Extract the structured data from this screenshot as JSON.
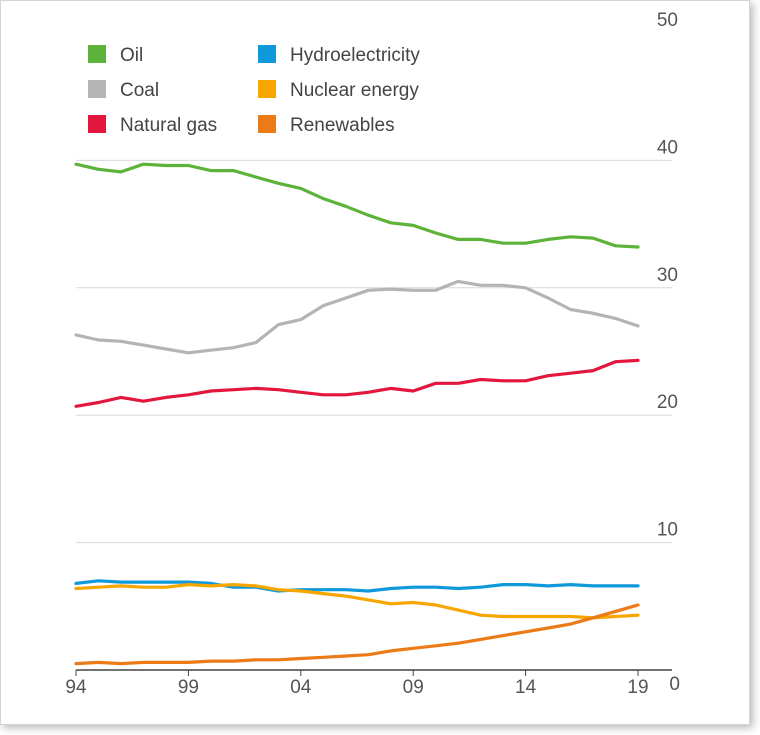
{
  "chart_data": {
    "type": "line",
    "title": "",
    "xlabel": "",
    "ylabel": "",
    "x": [
      1994,
      1995,
      1996,
      1997,
      1998,
      1999,
      2000,
      2001,
      2002,
      2003,
      2004,
      2005,
      2006,
      2007,
      2008,
      2009,
      2010,
      2011,
      2012,
      2013,
      2014,
      2015,
      2016,
      2017,
      2018,
      2019
    ],
    "x_tick_values": [
      1994,
      1999,
      2004,
      2009,
      2014,
      2019
    ],
    "x_tick_labels": [
      "94",
      "99",
      "04",
      "09",
      "14",
      "19"
    ],
    "xlim": [
      1994,
      2019
    ],
    "ylim": [
      0,
      50
    ],
    "y_ticks": [
      0,
      10,
      20,
      30,
      40,
      50
    ],
    "y_tick_labels": [
      "0",
      "10",
      "20",
      "30",
      "40",
      "50"
    ],
    "y_axis_side": "right",
    "grid": "horizontal",
    "legend_position": "top-left",
    "series": [
      {
        "name": "Oil",
        "color": "#5db33a",
        "values": [
          39.7,
          39.3,
          39.1,
          39.7,
          39.6,
          39.6,
          39.2,
          39.2,
          38.7,
          38.2,
          37.8,
          37.0,
          36.4,
          35.7,
          35.1,
          34.9,
          34.3,
          33.8,
          33.8,
          33.5,
          33.5,
          33.8,
          34.0,
          33.9,
          33.3,
          33.2
        ]
      },
      {
        "name": "Coal",
        "color": "#b4b4b4",
        "values": [
          26.3,
          25.9,
          25.8,
          25.5,
          25.2,
          24.9,
          25.1,
          25.3,
          25.7,
          27.1,
          27.5,
          28.6,
          29.2,
          29.8,
          29.9,
          29.8,
          29.8,
          30.5,
          30.2,
          30.2,
          30.0,
          29.2,
          28.3,
          28.0,
          27.6,
          27.0
        ]
      },
      {
        "name": "Natural gas",
        "color": "#e3173e",
        "values": [
          20.7,
          21.0,
          21.4,
          21.1,
          21.4,
          21.6,
          21.9,
          22.0,
          22.1,
          22.0,
          21.8,
          21.6,
          21.6,
          21.8,
          22.1,
          21.9,
          22.5,
          22.5,
          22.8,
          22.7,
          22.7,
          23.1,
          23.3,
          23.5,
          24.2,
          24.3
        ]
      },
      {
        "name": "Hydroelectricity",
        "color": "#0f99da",
        "values": [
          6.8,
          7.0,
          6.9,
          6.9,
          6.9,
          6.9,
          6.8,
          6.5,
          6.5,
          6.2,
          6.3,
          6.3,
          6.3,
          6.2,
          6.4,
          6.5,
          6.5,
          6.4,
          6.5,
          6.7,
          6.7,
          6.6,
          6.7,
          6.6,
          6.6,
          6.6
        ]
      },
      {
        "name": "Nuclear energy",
        "color": "#f7a600",
        "values": [
          6.4,
          6.5,
          6.6,
          6.5,
          6.5,
          6.7,
          6.6,
          6.7,
          6.6,
          6.3,
          6.2,
          6.0,
          5.8,
          5.5,
          5.2,
          5.3,
          5.1,
          4.7,
          4.3,
          4.2,
          4.2,
          4.2,
          4.2,
          4.1,
          4.2,
          4.3
        ]
      },
      {
        "name": "Renewables",
        "color": "#ec7a16",
        "values": [
          0.5,
          0.6,
          0.5,
          0.6,
          0.6,
          0.6,
          0.7,
          0.7,
          0.8,
          0.8,
          0.9,
          1.0,
          1.1,
          1.2,
          1.5,
          1.7,
          1.9,
          2.1,
          2.4,
          2.7,
          3.0,
          3.3,
          3.6,
          4.1,
          4.6,
          5.1
        ]
      }
    ]
  }
}
